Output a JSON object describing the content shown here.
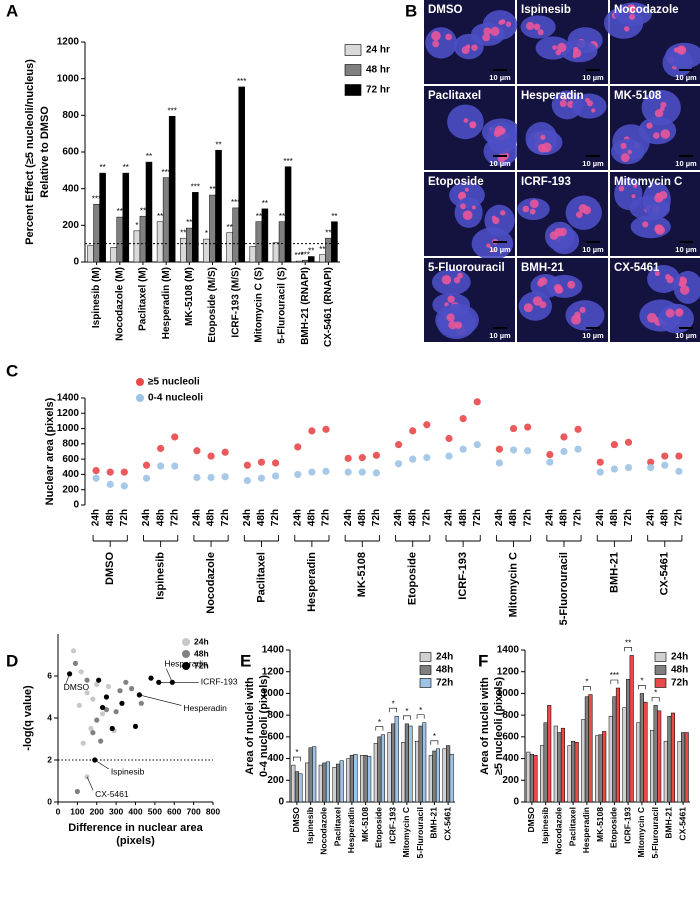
{
  "chart_data": [
    {
      "type": "bar",
      "panel": "A",
      "y_label": [
        "Percent Effect (≥5 nucleoli/nucleus)",
        "Relative to DMSO"
      ],
      "categories": [
        "Ispinesib (M)",
        "Nocodazole (M)",
        "Paclitaxel (M)",
        "Hesperadin (M)",
        "MK-5108 (M)",
        "Etoposide (M/S)",
        "ICRF-193 (M/S)",
        "Mitomycin C (S)",
        "5-Flurouracil (S)",
        "BMH-21 (RNAPI)",
        "CX-5461 (RNAPI)"
      ],
      "series": [
        {
          "name": "24 hr",
          "color": "#d9d9d9",
          "values": [
            90,
            80,
            170,
            220,
            130,
            125,
            160,
            85,
            105,
            5,
            40
          ],
          "significance": [
            null,
            null,
            "*",
            "**",
            "**",
            "*",
            "**",
            null,
            null,
            "***",
            "**"
          ]
        },
        {
          "name": "48 hr",
          "color": "#808080",
          "values": [
            315,
            245,
            250,
            460,
            185,
            365,
            295,
            220,
            220,
            10,
            130
          ],
          "significance": [
            "***",
            "**",
            "**",
            "***",
            "**",
            "**",
            "***",
            "**",
            "**",
            "***",
            "**"
          ]
        },
        {
          "name": "72 hr",
          "color": "#000000",
          "values": [
            485,
            485,
            545,
            795,
            380,
            610,
            955,
            290,
            520,
            30,
            220
          ],
          "significance": [
            "**",
            "**",
            "**",
            "***",
            "***",
            "**",
            "***",
            "**",
            "***",
            "**",
            "**"
          ]
        }
      ],
      "ylim": [
        0,
        1200
      ],
      "yticks": [
        0,
        200,
        400,
        600,
        800,
        1000,
        1200
      ],
      "reference_line": 100
    },
    {
      "type": "dot",
      "panel": "C",
      "y_label": [
        "Nuclear area (pixels)"
      ],
      "categories": [
        "24h",
        "48h",
        "72h",
        "24h",
        "48h",
        "72h",
        "24h",
        "48h",
        "72h",
        "24h",
        "48h",
        "72h",
        "24h",
        "48h",
        "72h",
        "24h",
        "48h",
        "72h",
        "24h",
        "48h",
        "72h",
        "24h",
        "48h",
        "72h",
        "24h",
        "48h",
        "72h",
        "24h",
        "48h",
        "72h",
        "24h",
        "48h",
        "72h",
        "24h",
        "48h",
        "72h"
      ],
      "groups": [
        "DMSO",
        "Ispinesib",
        "Nocodazole",
        "Paclitaxel",
        "Hesperadin",
        "MK-5108",
        "Etoposide",
        "ICRF-193",
        "Mitomycin C",
        "5-Fluorouracil",
        "BMH-21",
        "CX-5461"
      ],
      "series": [
        {
          "name": "≥5 nucleoli",
          "color": "#e8484a",
          "values": [
            450,
            430,
            430,
            520,
            740,
            890,
            710,
            640,
            690,
            520,
            560,
            550,
            760,
            970,
            990,
            610,
            620,
            650,
            790,
            970,
            1050,
            870,
            1130,
            1350,
            730,
            1000,
            1020,
            660,
            890,
            990,
            560,
            790,
            820,
            560,
            640,
            640
          ]
        },
        {
          "name": "0-4 nucleoli",
          "color": "#9dc3e6",
          "values": [
            350,
            270,
            250,
            350,
            510,
            510,
            360,
            360,
            370,
            320,
            350,
            380,
            400,
            430,
            440,
            430,
            430,
            420,
            540,
            600,
            620,
            640,
            730,
            790,
            550,
            720,
            710,
            560,
            700,
            730,
            430,
            470,
            490,
            490,
            520,
            440
          ]
        }
      ],
      "ylim": [
        0,
        1400
      ],
      "yticks": [
        0,
        200,
        400,
        600,
        800,
        1000,
        1200,
        1400
      ]
    },
    {
      "type": "scatter",
      "panel": "D",
      "x_label": [
        "Difference in nuclear area",
        "(pixels)"
      ],
      "y_label": [
        "-log(q value)"
      ],
      "series": [
        {
          "name": "24h",
          "color": "#c8c8c8",
          "x": [
            80,
            120,
            150,
            110,
            170,
            130,
            230,
            200,
            290,
            150,
            180,
            260
          ],
          "y": [
            7.2,
            6.2,
            5.2,
            4.6,
            3.5,
            2.8,
            4.2,
            5.6,
            3.4,
            1.2,
            4.9,
            5.5
          ]
        },
        {
          "name": "48h",
          "color": "#808080",
          "x": [
            90,
            150,
            200,
            250,
            300,
            320,
            220,
            380,
            180,
            100,
            350,
            430
          ],
          "y": [
            6.6,
            5.8,
            3.9,
            4.4,
            4.3,
            5.3,
            2.9,
            5.4,
            3.3,
            0.5,
            5.7,
            4.7
          ]
        },
        {
          "name": "72h",
          "color": "#000000",
          "x": [
            60,
            250,
            330,
            400,
            420,
            520,
            590,
            280,
            210,
            190,
            230,
            480
          ],
          "y": [
            6.1,
            5.0,
            4.7,
            3.6,
            5.1,
            5.7,
            5.7,
            3.5,
            5.8,
            2.0,
            4.5,
            5.9
          ]
        }
      ],
      "annotations": [
        "DMSO",
        "Hesperadin",
        "ICRF-193",
        "Hesperadin",
        "Ispinesib",
        "CX-5461"
      ],
      "xlim": [
        0,
        800
      ],
      "xticks": [
        0,
        100,
        200,
        300,
        400,
        500,
        600,
        700,
        800
      ],
      "ylim": [
        0,
        8
      ],
      "yticks": [
        0,
        2,
        4,
        6
      ],
      "reference_line": 2
    },
    {
      "type": "bar",
      "panel": "E",
      "y_label": [
        "Area of nuclei with",
        "0-4 nucleoli (pixels)"
      ],
      "categories": [
        "DMSO",
        "Ispinesib",
        "Nocodazole",
        "Paclitaxel",
        "Hesperadin",
        "MK-5108",
        "Etoposide",
        "ICRF-193",
        "Mitomycin C",
        "5-Flurouracil",
        "BMH-21",
        "CX-5461"
      ],
      "series": [
        {
          "name": "24h",
          "color": "#d0d0d0",
          "values": [
            340,
            360,
            340,
            320,
            400,
            430,
            540,
            640,
            550,
            560,
            430,
            490
          ]
        },
        {
          "name": "48h",
          "color": "#7f7f7f",
          "values": [
            280,
            500,
            360,
            350,
            430,
            430,
            600,
            720,
            720,
            700,
            470,
            520
          ]
        },
        {
          "name": "72h",
          "color": "#9dc3e6",
          "values": [
            260,
            510,
            370,
            380,
            440,
            420,
            620,
            790,
            700,
            730,
            490,
            440
          ]
        }
      ],
      "significance": [
        "*",
        null,
        null,
        null,
        null,
        null,
        "*",
        "*",
        "*",
        "*",
        "*",
        null
      ],
      "ylim": [
        0,
        1400
      ],
      "yticks": [
        0,
        200,
        400,
        600,
        800,
        1000,
        1200,
        1400
      ]
    },
    {
      "type": "bar",
      "panel": "F",
      "y_label": [
        "Area of nuclei with",
        "≥5 nucleoli (pixels)"
      ],
      "categories": [
        "DMSO",
        "Ispinesib",
        "Nocodazole",
        "Paclitaxel",
        "Hesperadin",
        "MK-5108",
        "Etoposide",
        "ICRF-193",
        "Mitomycin C",
        "5-Flurouracil",
        "BMH-21",
        "CX-5461"
      ],
      "series": [
        {
          "name": "24h",
          "color": "#d0d0d0",
          "values": [
            460,
            520,
            700,
            520,
            760,
            610,
            790,
            870,
            730,
            660,
            560,
            560
          ]
        },
        {
          "name": "48h",
          "color": "#7f7f7f",
          "values": [
            440,
            730,
            640,
            560,
            970,
            620,
            970,
            1130,
            1000,
            890,
            790,
            640
          ]
        },
        {
          "name": "72h",
          "color": "#e84a4a",
          "values": [
            430,
            890,
            680,
            550,
            990,
            650,
            1050,
            1350,
            920,
            840,
            820,
            640
          ]
        }
      ],
      "significance": [
        null,
        null,
        null,
        null,
        "*",
        null,
        "***",
        "**",
        "*",
        "*",
        null,
        null
      ],
      "ylim": [
        0,
        1400
      ],
      "yticks": [
        0,
        200,
        400,
        600,
        800,
        1000,
        1200,
        1400
      ]
    }
  ],
  "image_panel": {
    "panel": "B",
    "scale_bar": "10 µm",
    "tiles": [
      "DMSO",
      "Ispinesib",
      "Nocodazole",
      "Paclitaxel",
      "Hesperadin",
      "MK-5108",
      "Etoposide",
      "ICRF-193",
      "Mitomycin C",
      "5-Fluorouracil",
      "BMH-21",
      "CX-5461"
    ]
  }
}
